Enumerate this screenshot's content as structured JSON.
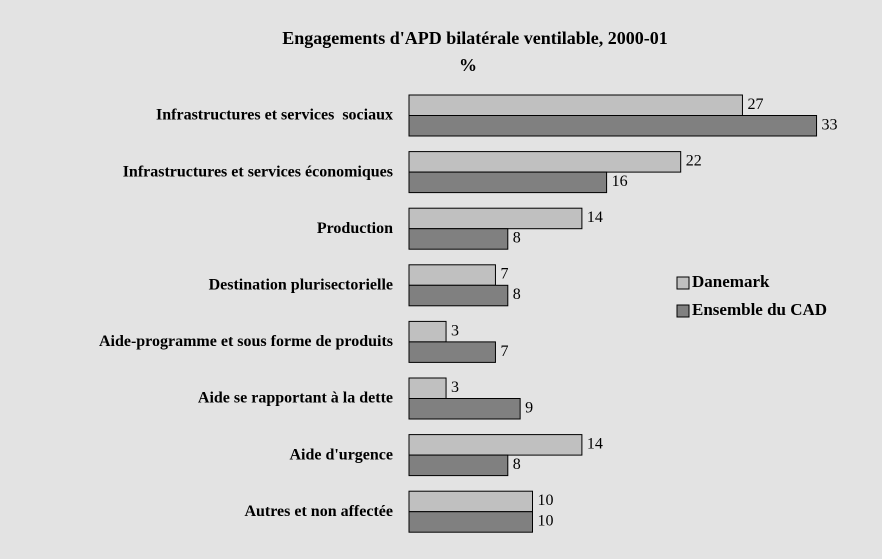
{
  "chart_data": {
    "type": "bar",
    "orientation": "horizontal",
    "title": "Engagements d'APD bilatérale ventilable, 2000-01",
    "subtitle": "%",
    "categories": [
      "Infrastructures et services  sociaux",
      "Infrastructures et services économiques",
      "Production",
      "Destination plurisectorielle",
      "Aide-programme et sous forme de produits",
      "Aide se rapportant à la dette",
      "Aide d'urgence",
      "Autres et non affectée"
    ],
    "series": [
      {
        "name": "Danemark",
        "color": "#c0c0c0",
        "values": [
          27,
          22,
          14,
          7,
          3,
          3,
          14,
          10
        ]
      },
      {
        "name": "Ensemble du CAD",
        "color": "#808080",
        "values": [
          33,
          16,
          8,
          8,
          7,
          9,
          8,
          10
        ]
      }
    ],
    "legend": "right"
  }
}
